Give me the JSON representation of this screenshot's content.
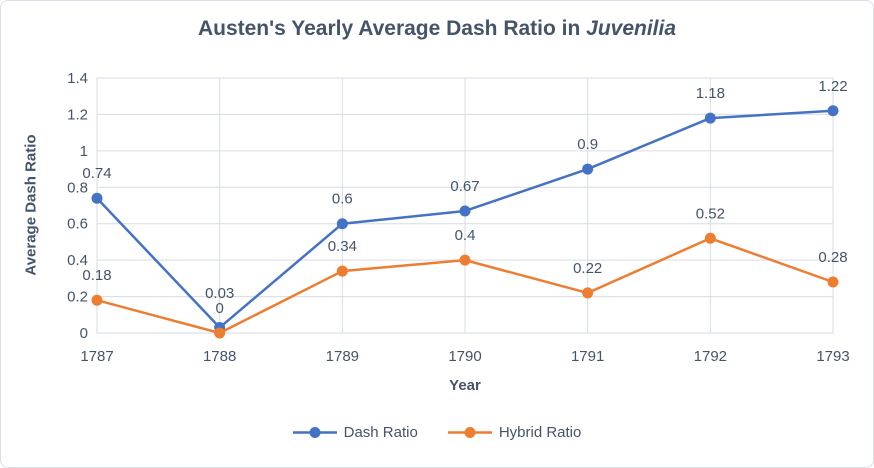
{
  "title": {
    "text_prefix": "Austen's Yearly Average Dash Ratio in ",
    "text_italic": "Juvenilia"
  },
  "chart_data": {
    "type": "line",
    "title": "Austen's Yearly Average Dash Ratio in Juvenilia",
    "categories": [
      "1787",
      "1788",
      "1789",
      "1790",
      "1791",
      "1792",
      "1793"
    ],
    "series": [
      {
        "name": "Dash Ratio",
        "color": "#4472C4",
        "values": [
          0.74,
          0.03,
          0.6,
          0.67,
          0.9,
          1.18,
          1.22
        ]
      },
      {
        "name": "Hybrid Ratio",
        "color": "#ED7D31",
        "values": [
          0.18,
          0,
          0.34,
          0.4,
          0.22,
          0.52,
          0.28
        ]
      }
    ],
    "data_labels": [
      [
        "0.74",
        "0.03",
        "0.6",
        "0.67",
        "0.9",
        "1.18",
        "1.22"
      ],
      [
        "0.18",
        "0",
        "0.34",
        "0.4",
        "0.22",
        "0.52",
        "0.28"
      ]
    ],
    "xlabel": "Year",
    "ylabel": "Average Dash Ratio",
    "ylim": [
      0,
      1.4
    ],
    "yticks": [
      0,
      0.2,
      0.4,
      0.6,
      0.8,
      1,
      1.2,
      1.4
    ],
    "ytick_labels": [
      "0",
      "0.2",
      "0.4",
      "0.6",
      "0.8",
      "1",
      "1.2",
      "1.4"
    ],
    "grid": true,
    "legend_position": "bottom",
    "data_labels_visible": true
  },
  "colors": {
    "series_blue": "#4472C4",
    "series_orange": "#ED7D31",
    "title_text": "#44546A",
    "axis_text": "#44546A",
    "data_label_text": "#44546A",
    "gridline": "#D6DCE5",
    "plot_border": "#D6DCE5",
    "background": "#FFFFFF",
    "outer_border": "#D9DEE8"
  }
}
